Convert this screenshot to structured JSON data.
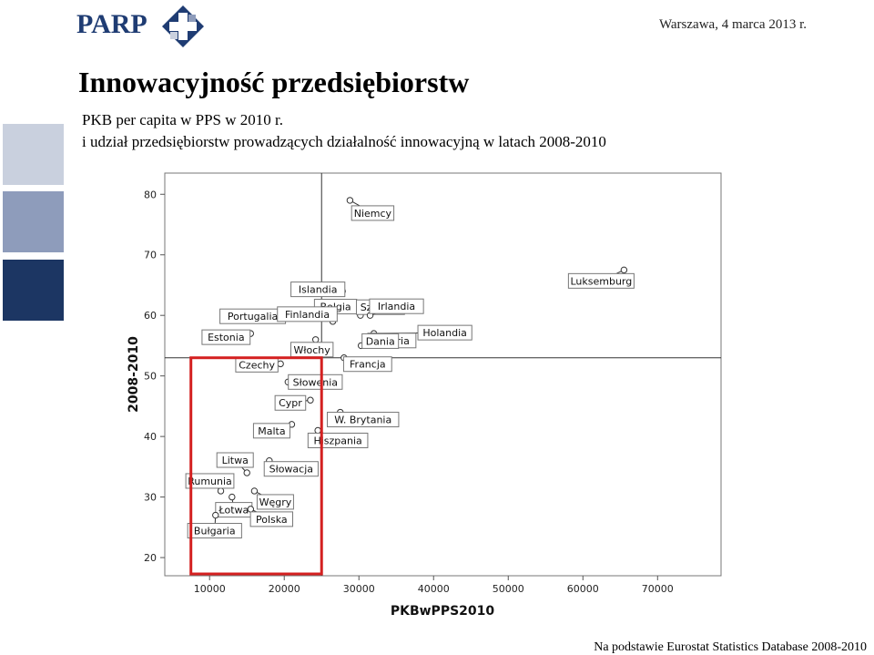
{
  "header": {
    "logo_text": "PARP",
    "date": "Warszawa, 4 marca 2013 r."
  },
  "title": "Innowacyjność przedsiębiorstw",
  "subtitle_line1": "PKB per capita w PPS w 2010 r.",
  "subtitle_line2": "i udział przedsiębiorstw prowadzących działalność innowacyjną w latach 2008-2010",
  "footer": "Na podstawie Eurostat Statistics Database 2008-2010",
  "colors": {
    "brand": "#1f3c73",
    "highlight_box": "#d42020",
    "side1": "#c9d0de",
    "side2": "#8e9cbb",
    "side3": "#1c3663"
  },
  "chart_data": {
    "type": "scatter",
    "xlabel": "PKBwPPS2010",
    "ylabel": "2008-2010",
    "xlim": [
      4000,
      78500
    ],
    "ylim": [
      17,
      83.5
    ],
    "xticks": [
      "10000",
      "20000",
      "30000",
      "40000",
      "50000",
      "60000",
      "70000"
    ],
    "yticks": [
      "20",
      "30",
      "40",
      "50",
      "60",
      "70",
      "80"
    ],
    "ref_lines": {
      "x": 25000,
      "y": 53
    },
    "highlight_region": {
      "x": [
        7500,
        25000
      ],
      "y": [
        17.3,
        53
      ]
    },
    "points": [
      {
        "label": "Niemcy",
        "x": 28800,
        "y": 79
      },
      {
        "label": "Luksemburg",
        "x": 65500,
        "y": 67.5
      },
      {
        "label": "Islandia",
        "x": 27800,
        "y": 64
      },
      {
        "label": "Belgia",
        "x": 29800,
        "y": 61
      },
      {
        "label": "Szwecja",
        "x": 30200,
        "y": 60
      },
      {
        "label": "Irlandia",
        "x": 31500,
        "y": 60
      },
      {
        "label": "Portugalia",
        "x": 19800,
        "y": 60
      },
      {
        "label": "Finlandia",
        "x": 26500,
        "y": 59
      },
      {
        "label": "Estonia",
        "x": 15500,
        "y": 57
      },
      {
        "label": "Holandia",
        "x": 32000,
        "y": 57
      },
      {
        "label": "Austria",
        "x": 31000,
        "y": 56
      },
      {
        "label": "Włochy",
        "x": 24200,
        "y": 56
      },
      {
        "label": "Dania",
        "x": 30300,
        "y": 55
      },
      {
        "label": "Francja",
        "x": 28000,
        "y": 53
      },
      {
        "label": "Czechy",
        "x": 19500,
        "y": 52
      },
      {
        "label": "Słowenia",
        "x": 20500,
        "y": 49
      },
      {
        "label": "Cypr",
        "x": 23500,
        "y": 46
      },
      {
        "label": "W. Brytania",
        "x": 27500,
        "y": 44
      },
      {
        "label": "Malta",
        "x": 21000,
        "y": 42
      },
      {
        "label": "Hiszpania",
        "x": 24500,
        "y": 41
      },
      {
        "label": "Litwa",
        "x": 15000,
        "y": 34
      },
      {
        "label": "Słowacja",
        "x": 18000,
        "y": 36
      },
      {
        "label": "Rumunia",
        "x": 11500,
        "y": 31
      },
      {
        "label": "Węgry",
        "x": 16000,
        "y": 31
      },
      {
        "label": "Łotwa",
        "x": 13000,
        "y": 30
      },
      {
        "label": "Polska",
        "x": 15500,
        "y": 28
      },
      {
        "label": "Bułgaria",
        "x": 10800,
        "y": 27
      }
    ]
  }
}
